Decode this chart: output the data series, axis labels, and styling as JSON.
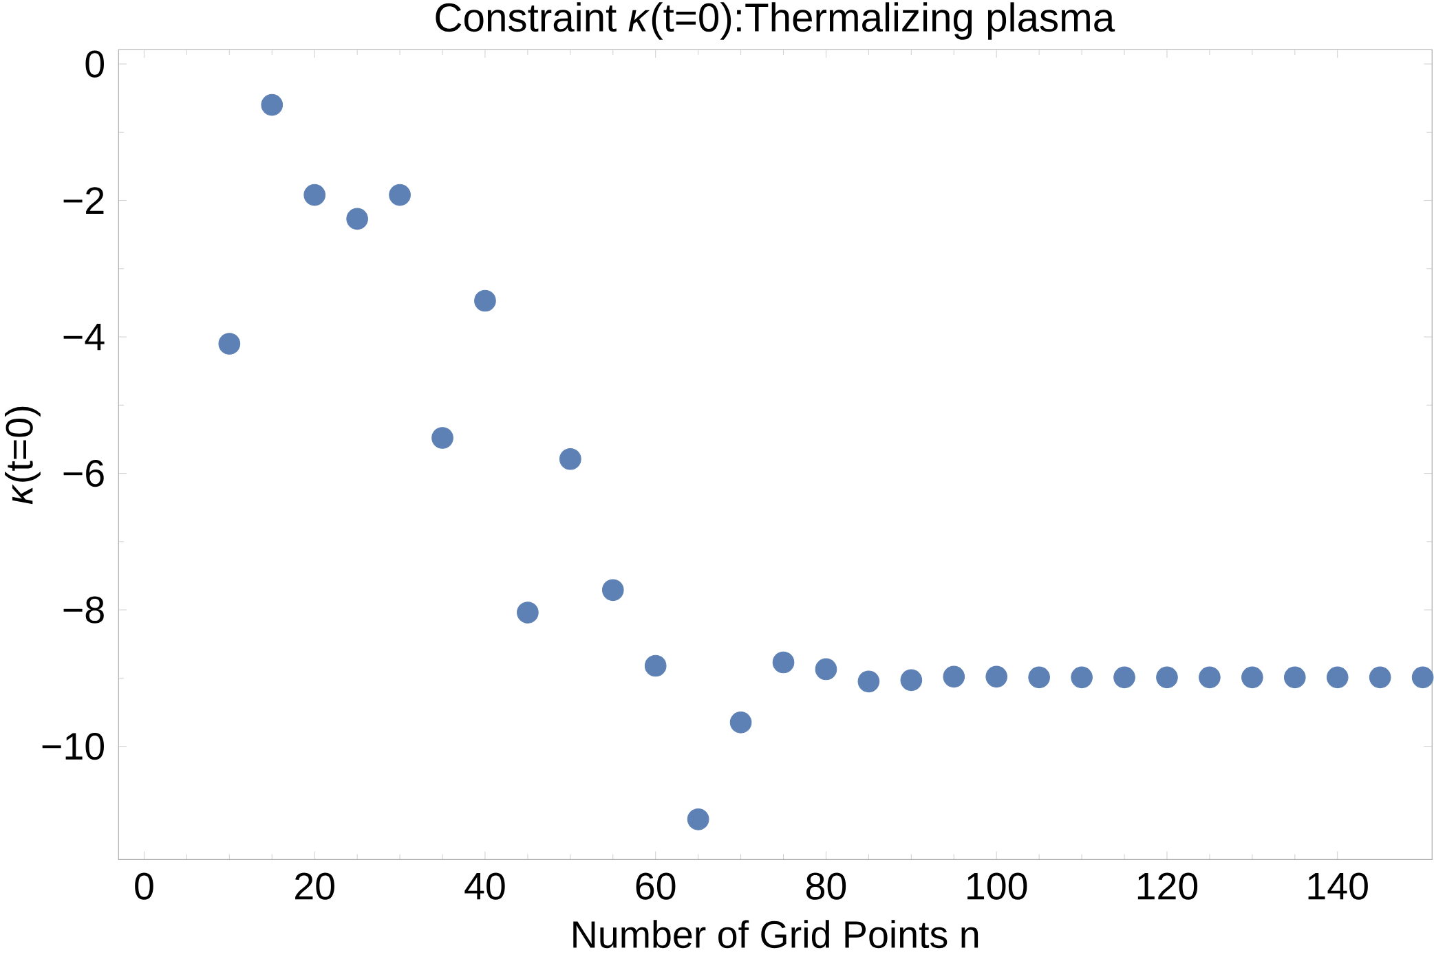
{
  "chart_data": {
    "type": "scatter",
    "title": "Constraint *κ*(t=0):Thermalizing plasma",
    "xlabel": "Number of Grid Points n",
    "ylabel": "*κ*(t=0)",
    "x": [
      10,
      15,
      20,
      25,
      30,
      35,
      40,
      45,
      50,
      55,
      60,
      65,
      70,
      75,
      80,
      85,
      90,
      95,
      100,
      105,
      110,
      115,
      120,
      125,
      130,
      135,
      140,
      145,
      150
    ],
    "values": [
      -4.1,
      -0.6,
      -1.92,
      -2.27,
      -1.92,
      -5.48,
      -3.47,
      -8.04,
      -5.79,
      -7.71,
      -8.82,
      -11.07,
      -9.65,
      -8.77,
      -8.87,
      -9.05,
      -9.03,
      -8.98,
      -8.98,
      -8.99,
      -8.99,
      -8.99,
      -8.99,
      -8.99,
      -8.99,
      -8.99,
      -8.99,
      -8.99,
      -8.99
    ],
    "color": "#5e81b5",
    "marker": "circle",
    "xlim": [
      -3,
      151.1
    ],
    "ylim": [
      -11.66,
      0.21
    ],
    "xticks": [
      0,
      20,
      40,
      60,
      80,
      100,
      120,
      140
    ],
    "yticks": [
      {
        "value": 0,
        "label": "0"
      },
      {
        "value": -2,
        "label": "−2"
      },
      {
        "value": -4,
        "label": "−4"
      },
      {
        "value": -6,
        "label": "−6"
      },
      {
        "value": -8,
        "label": "−8"
      },
      {
        "value": -10,
        "label": "−10"
      }
    ]
  }
}
